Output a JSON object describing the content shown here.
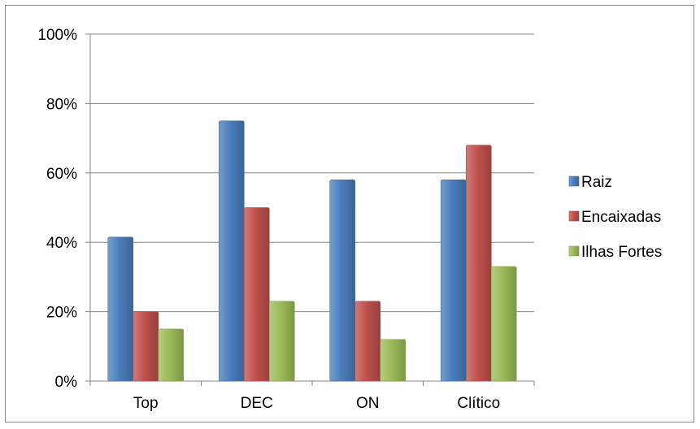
{
  "chart_data": {
    "type": "bar",
    "categories": [
      "Top",
      "DEC",
      "ON",
      "Clítico"
    ],
    "series": [
      {
        "name": "Raiz",
        "values": [
          41.5,
          75,
          58,
          58
        ],
        "color": "#4a7ebb"
      },
      {
        "name": "Encaixadas",
        "values": [
          20,
          50,
          23,
          68
        ],
        "color": "#c0504d"
      },
      {
        "name": "Ilhas Fortes",
        "values": [
          15,
          23,
          12,
          33
        ],
        "color": "#9bbb59"
      }
    ],
    "yticks": [
      "0%",
      "20%",
      "40%",
      "60%",
      "80%",
      "100%"
    ],
    "ylim": [
      0,
      100
    ],
    "grid": true,
    "legend_position": "right",
    "title": "",
    "xlabel": "",
    "ylabel": ""
  }
}
